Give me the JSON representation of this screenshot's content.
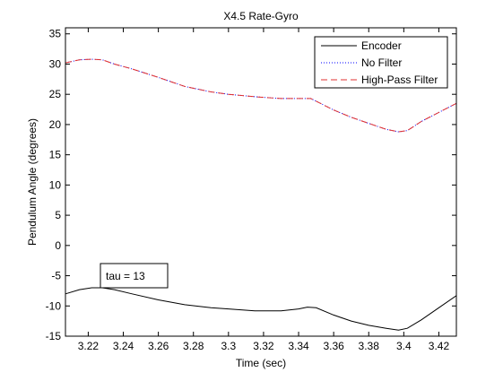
{
  "chart_data": {
    "type": "line",
    "title": "X4.5 Rate-Gyro",
    "xlabel": "Time (sec)",
    "ylabel": "Pendulum Angle (degrees)",
    "xlim": [
      3.207,
      3.43
    ],
    "ylim": [
      -15,
      36
    ],
    "x_ticks": [
      3.22,
      3.24,
      3.26,
      3.28,
      3.3,
      3.32,
      3.34,
      3.36,
      3.38,
      3.4,
      3.42
    ],
    "x_tick_labels": [
      "3.22",
      "3.24",
      "3.26",
      "3.28",
      "3.3",
      "3.32",
      "3.34",
      "3.36",
      "3.38",
      "3.4",
      "3.42"
    ],
    "y_ticks": [
      -15,
      -10,
      -5,
      0,
      5,
      10,
      15,
      20,
      25,
      30,
      35
    ],
    "y_tick_labels": [
      "-15",
      "-10",
      "-5",
      "0",
      "5",
      "10",
      "15",
      "20",
      "25",
      "30",
      "35"
    ],
    "grid": false,
    "legend_position": "top-right",
    "annotation": "tau = 13",
    "series": [
      {
        "name": "Encoder",
        "color": "#000000",
        "style": "solid",
        "x": [
          3.207,
          3.215,
          3.222,
          3.228,
          3.235,
          3.245,
          3.26,
          3.275,
          3.29,
          3.3,
          3.315,
          3.33,
          3.34,
          3.345,
          3.35,
          3.36,
          3.37,
          3.38,
          3.39,
          3.397,
          3.402,
          3.41,
          3.42,
          3.43
        ],
        "y": [
          -8.0,
          -7.3,
          -7.0,
          -7.0,
          -7.3,
          -8.0,
          -9.0,
          -9.8,
          -10.3,
          -10.5,
          -10.8,
          -10.8,
          -10.5,
          -10.2,
          -10.3,
          -11.5,
          -12.5,
          -13.2,
          -13.7,
          -14.0,
          -13.7,
          -12.3,
          -10.3,
          -8.3
        ]
      },
      {
        "name": "No Filter",
        "color": "#0000ff",
        "style": "dotted",
        "x": [
          3.207,
          3.215,
          3.222,
          3.228,
          3.235,
          3.245,
          3.26,
          3.275,
          3.29,
          3.3,
          3.315,
          3.33,
          3.34,
          3.347,
          3.36,
          3.37,
          3.38,
          3.39,
          3.397,
          3.402,
          3.41,
          3.42,
          3.43
        ],
        "y": [
          30.2,
          30.7,
          30.8,
          30.7,
          30.0,
          29.2,
          27.8,
          26.3,
          25.4,
          25.0,
          24.6,
          24.3,
          24.3,
          24.3,
          22.4,
          21.2,
          20.2,
          19.2,
          18.8,
          19.0,
          20.5,
          22.0,
          23.5
        ]
      },
      {
        "name": "High-Pass Filter",
        "color": "#e03030",
        "style": "dashed",
        "x": [
          3.207,
          3.215,
          3.222,
          3.228,
          3.235,
          3.245,
          3.26,
          3.275,
          3.29,
          3.3,
          3.315,
          3.33,
          3.34,
          3.347,
          3.36,
          3.37,
          3.38,
          3.39,
          3.397,
          3.402,
          3.41,
          3.42,
          3.43
        ],
        "y": [
          30.2,
          30.7,
          30.8,
          30.7,
          30.0,
          29.2,
          27.8,
          26.3,
          25.4,
          25.0,
          24.6,
          24.3,
          24.3,
          24.3,
          22.4,
          21.2,
          20.2,
          19.2,
          18.8,
          19.0,
          20.5,
          22.0,
          23.5
        ]
      }
    ]
  }
}
